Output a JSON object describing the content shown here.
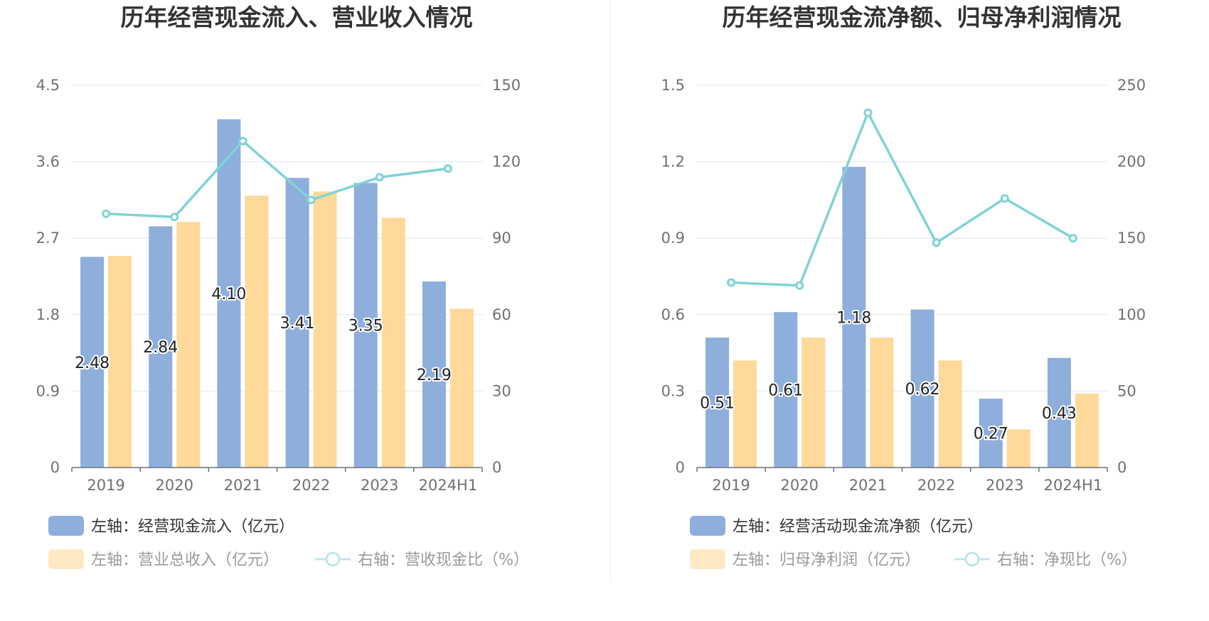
{
  "colors": {
    "bar_primary": "#8eaedc",
    "bar_secondary": "#ffd99a",
    "line": "#7fd3d6",
    "grid": "#dfe4ef",
    "axis": "#6e7079",
    "divider": "#eeeeee"
  },
  "chart_data": [
    {
      "type": "bar",
      "title": "历年经营现金流入、营业收入情况",
      "categories": [
        "2019",
        "2020",
        "2021",
        "2022",
        "2023",
        "2024H1"
      ],
      "left_axis": {
        "min": 0,
        "max": 4.5,
        "ticks": [
          "0",
          "0.9",
          "1.8",
          "2.7",
          "3.6",
          "4.5"
        ]
      },
      "right_axis": {
        "min": 0,
        "max": 150,
        "ticks": [
          "0",
          "30",
          "60",
          "90",
          "120",
          "150"
        ]
      },
      "series": [
        {
          "name": "左轴：经营现金流入（亿元）",
          "kind": "bar",
          "axis": "left",
          "values": [
            2.48,
            2.84,
            4.1,
            3.41,
            3.35,
            2.19
          ],
          "labels": [
            "2.48",
            "2.84",
            "4.10",
            "3.41",
            "3.35",
            "2.19"
          ]
        },
        {
          "name": "左轴：营业总收入（亿元）",
          "kind": "bar",
          "axis": "left",
          "values": [
            2.49,
            2.89,
            3.2,
            3.25,
            2.94,
            1.87
          ]
        },
        {
          "name": "右轴：营收现金比（%）",
          "kind": "line",
          "axis": "right",
          "values": [
            99.6,
            98.3,
            128.1,
            105.0,
            113.9,
            117.3
          ]
        }
      ],
      "legend": {
        "row1": [
          "左轴：经营现金流入（亿元）"
        ],
        "row2": [
          "左轴：营业总收入（亿元）",
          "右轴：营收现金比（%）"
        ]
      }
    },
    {
      "type": "bar",
      "title": "历年经营现金流净额、归母净利润情况",
      "categories": [
        "2019",
        "2020",
        "2021",
        "2022",
        "2023",
        "2024H1"
      ],
      "left_axis": {
        "min": 0,
        "max": 1.5,
        "ticks": [
          "0",
          "0.3",
          "0.6",
          "0.9",
          "1.2",
          "1.5"
        ]
      },
      "right_axis": {
        "min": 0,
        "max": 250,
        "ticks": [
          "0",
          "50",
          "100",
          "150",
          "200",
          "250"
        ]
      },
      "series": [
        {
          "name": "左轴：经营活动现金流净额（亿元）",
          "kind": "bar",
          "axis": "left",
          "values": [
            0.51,
            0.61,
            1.18,
            0.62,
            0.27,
            0.43
          ],
          "labels": [
            "0.51",
            "0.61",
            "1.18",
            "0.62",
            "0.27",
            "0.43"
          ]
        },
        {
          "name": "左轴：归母净利润（亿元）",
          "kind": "bar",
          "axis": "left",
          "values": [
            0.42,
            0.51,
            0.51,
            0.42,
            0.15,
            0.29
          ]
        },
        {
          "name": "右轴：净现比（%）",
          "kind": "line",
          "axis": "right",
          "values": [
            121.0,
            119.0,
            232.0,
            147.0,
            176.0,
            150.0
          ]
        }
      ],
      "legend": {
        "row1": [
          "左轴：经营活动现金流净额（亿元）"
        ],
        "row2": [
          "左轴：归母净利润（亿元）",
          "右轴：净现比（%）"
        ]
      }
    }
  ]
}
